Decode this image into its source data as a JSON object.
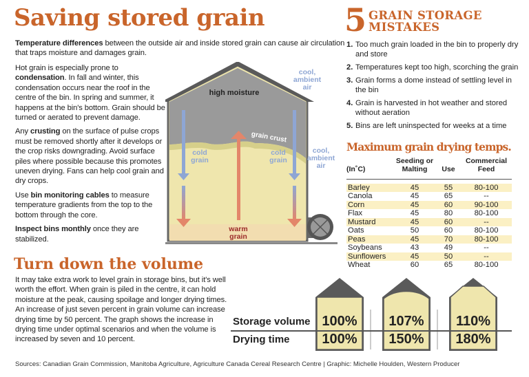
{
  "title": "Saving stored grain",
  "intro": {
    "bold": "Temperature differences",
    "rest": " between the outside air and inside stored grain can cause air circulation that traps moisture and damages grain."
  },
  "paragraphs": [
    {
      "pre": "Hot grain is especially prone to ",
      "bold": "condensation",
      "post": ". In fall and winter, this condensation occurs near the roof in the centre of the bin. In spring and summer, it happens at the bin's bottom. Grain should be turned or aerated to prevent damage."
    },
    {
      "pre": "Any ",
      "bold": "crusting",
      "post": " on the surface of pulse crops must be removed shortly after it develops or the crop risks downgrading. Avoid surface piles where possible because this promotes uneven drying. Fans can help cool grain and dry crops."
    },
    {
      "pre": "Use ",
      "bold": "bin monitoring cables",
      "post": " to measure temperature gradients from the top to the bottom through the core."
    },
    {
      "pre": "",
      "bold": "Inspect bins monthly",
      "post": " once they are stabilized."
    }
  ],
  "diagram": {
    "high_moisture": "high moisture",
    "grain_crust": "grain crust",
    "cold_grain_1": [
      "cold",
      "grain"
    ],
    "cold_grain_2": [
      "cold",
      "grain"
    ],
    "warm_grain": [
      "warm",
      "grain"
    ],
    "cool_air_1": [
      "cool,",
      "ambient",
      "air"
    ],
    "cool_air_2": [
      "cool,",
      "ambient",
      "air"
    ]
  },
  "mistakes": {
    "number": "5",
    "title_line1": "GRAIN STORAGE",
    "title_line2": "MISTAKES",
    "items": [
      "Too much grain loaded in the bin to properly dry and store",
      "Temperatures kept too high, scorching the grain",
      "Grain forms a dome instead of settling level in the bin",
      "Grain is harvested in hot weather and stored without aeration",
      "Bins are left uninspected for weeks at a time"
    ]
  },
  "drying_table": {
    "title": "Maximum grain drying temps.",
    "headers": [
      "(In˚C)",
      "Seeding or Malting",
      "Use",
      "Commercial Feed"
    ],
    "rows": [
      [
        "Barley",
        "45",
        "55",
        "80-100"
      ],
      [
        "Canola",
        "45",
        "65",
        "--"
      ],
      [
        "Corn",
        "45",
        "60",
        "90-100"
      ],
      [
        "Flax",
        "45",
        "80",
        "80-100"
      ],
      [
        "Mustard",
        "45",
        "60",
        "--"
      ],
      [
        "Oats",
        "50",
        "60",
        "80-100"
      ],
      [
        "Peas",
        "45",
        "70",
        "80-100"
      ],
      [
        "Soybeans",
        "43",
        "49",
        "--"
      ],
      [
        "Sunflowers",
        "45",
        "50",
        "--"
      ],
      [
        "Wheat",
        "60",
        "65",
        "80-100"
      ]
    ]
  },
  "volume": {
    "title": "Turn down the volume",
    "text": "It may take extra work to level grain in storage bins, but it's well worth the effort. When grain is piled in the centre, it can hold moisture at the peak, causing spoilage and longer drying times. An increase of just seven percent in grain volume can increase drying time by 50 percent. The graph shows the increase in drying time under optimal scenarios and when the volume is increased by seven and 10 percent.",
    "storage_label": "Storage volume",
    "drying_label": "Drying time",
    "bins": [
      {
        "storage": "100%",
        "drying": "100%"
      },
      {
        "storage": "107%",
        "drying": "150%"
      },
      {
        "storage": "110%",
        "drying": "180%"
      }
    ]
  },
  "footer": "Sources: Canadian Grain Commission, Manitoba Agriculture, Agriculture Canada Cereal Research Centre  |  Graphic: Michelle Houlden, Western Producer",
  "colors": {
    "accent": "#c9652b",
    "grain": "#efe6ad",
    "roof": "#6d6d6d",
    "cold": "#8ea6d4",
    "warm": "#e3866a"
  }
}
